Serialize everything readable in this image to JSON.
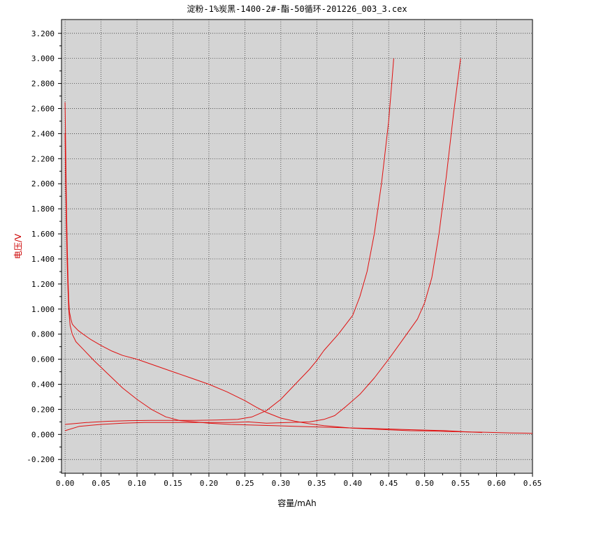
{
  "chart_data": {
    "type": "line",
    "title": "淀粉-1%炭黑-1400-2#-酯-50循环-201226_003_3.cex",
    "xlabel": "容量/mAh",
    "ylabel": "电压/V",
    "xlim": [
      -0.005,
      0.65
    ],
    "ylim": [
      -0.31,
      3.31
    ],
    "x_ticks": [
      0.0,
      0.05,
      0.1,
      0.15,
      0.2,
      0.25,
      0.3,
      0.35,
      0.4,
      0.45,
      0.5,
      0.55,
      0.6,
      0.65
    ],
    "x_tick_labels": [
      "0.00",
      "0.05",
      "0.10",
      "0.15",
      "0.20",
      "0.25",
      "0.30",
      "0.35",
      "0.40",
      "0.45",
      "0.50",
      "0.55",
      "0.60",
      "0.65"
    ],
    "y_ticks": [
      -0.2,
      0.0,
      0.2,
      0.4,
      0.6,
      0.8,
      1.0,
      1.2,
      1.4,
      1.6,
      1.8,
      2.0,
      2.2,
      2.4,
      2.6,
      2.8,
      3.0,
      3.2
    ],
    "y_tick_labels": [
      "-0.200",
      "0.000",
      "0.200",
      "0.400",
      "0.600",
      "0.800",
      "1.000",
      "1.200",
      "1.400",
      "1.600",
      "1.800",
      "2.000",
      "2.200",
      "2.400",
      "2.600",
      "2.800",
      "3.000",
      "3.200"
    ],
    "grid": true,
    "colors": {
      "plot_bg": "#d4d4d4",
      "line": "#e01010",
      "grid": "#222222",
      "ylabel": "#cc0000"
    },
    "series": [
      {
        "x": [
          0.0,
          0.001,
          0.002,
          0.003,
          0.004,
          0.005,
          0.006,
          0.008,
          0.01,
          0.013,
          0.018,
          0.025,
          0.035,
          0.05,
          0.065,
          0.08,
          0.1,
          0.125,
          0.15,
          0.175,
          0.2,
          0.225,
          0.25,
          0.265,
          0.28,
          0.3,
          0.32,
          0.34,
          0.36,
          0.38,
          0.4,
          0.42,
          0.44,
          0.46,
          0.48,
          0.5,
          0.52,
          0.54,
          0.56,
          0.58,
          0.6,
          0.62,
          0.64,
          0.65
        ],
        "y": [
          2.65,
          2.2,
          1.8,
          1.5,
          1.25,
          1.08,
          0.98,
          0.92,
          0.88,
          0.86,
          0.83,
          0.8,
          0.76,
          0.71,
          0.665,
          0.63,
          0.6,
          0.55,
          0.5,
          0.45,
          0.4,
          0.34,
          0.27,
          0.22,
          0.175,
          0.13,
          0.105,
          0.085,
          0.07,
          0.06,
          0.05,
          0.045,
          0.04,
          0.035,
          0.03,
          0.028,
          0.025,
          0.022,
          0.02,
          0.018,
          0.015,
          0.012,
          0.01,
          0.008
        ]
      },
      {
        "x": [
          0.0,
          0.02,
          0.05,
          0.08,
          0.11,
          0.14,
          0.17,
          0.2,
          0.23,
          0.255,
          0.28,
          0.31,
          0.34,
          0.36,
          0.375,
          0.39,
          0.41,
          0.43,
          0.45,
          0.47,
          0.49,
          0.5,
          0.51,
          0.52,
          0.53,
          0.54,
          0.55
        ],
        "y": [
          0.03,
          0.065,
          0.08,
          0.09,
          0.095,
          0.095,
          0.095,
          0.095,
          0.095,
          0.1,
          0.09,
          0.095,
          0.1,
          0.12,
          0.15,
          0.22,
          0.32,
          0.45,
          0.6,
          0.76,
          0.92,
          1.05,
          1.25,
          1.6,
          2.05,
          2.55,
          3.0
        ]
      },
      {
        "x": [
          0.0,
          0.001,
          0.002,
          0.003,
          0.004,
          0.005,
          0.007,
          0.01,
          0.015,
          0.025,
          0.04,
          0.06,
          0.08,
          0.1,
          0.12,
          0.14,
          0.16,
          0.18,
          0.2,
          0.23,
          0.26,
          0.29,
          0.32,
          0.35,
          0.38,
          0.41,
          0.44,
          0.47,
          0.5,
          0.53,
          0.56,
          0.58
        ],
        "y": [
          2.4,
          1.95,
          1.6,
          1.35,
          1.15,
          1.0,
          0.87,
          0.8,
          0.74,
          0.68,
          0.59,
          0.48,
          0.37,
          0.28,
          0.2,
          0.14,
          0.11,
          0.1,
          0.09,
          0.08,
          0.075,
          0.07,
          0.065,
          0.06,
          0.055,
          0.05,
          0.045,
          0.04,
          0.035,
          0.03,
          0.02,
          0.015
        ]
      },
      {
        "x": [
          0.0,
          0.03,
          0.06,
          0.09,
          0.12,
          0.15,
          0.18,
          0.21,
          0.24,
          0.26,
          0.28,
          0.3,
          0.32,
          0.34,
          0.35,
          0.36,
          0.38,
          0.4,
          0.41,
          0.42,
          0.43,
          0.44,
          0.45,
          0.455,
          0.457
        ],
        "y": [
          0.08,
          0.095,
          0.105,
          0.11,
          0.112,
          0.112,
          0.112,
          0.115,
          0.12,
          0.14,
          0.19,
          0.28,
          0.4,
          0.52,
          0.59,
          0.67,
          0.8,
          0.95,
          1.1,
          1.3,
          1.6,
          2.0,
          2.5,
          2.85,
          3.0
        ]
      }
    ]
  }
}
